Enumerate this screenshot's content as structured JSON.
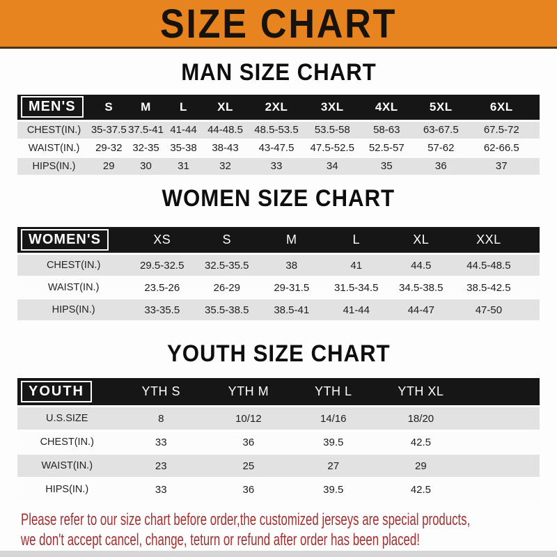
{
  "banner": {
    "title": "SIZE CHART"
  },
  "men": {
    "heading": "MAN SIZE CHART",
    "label": "MEN'S",
    "columns": [
      "S",
      "M",
      "L",
      "XL",
      "2XL",
      "3XL",
      "4XL",
      "5XL",
      "6XL"
    ],
    "rows": [
      {
        "label": "CHEST(IN.)",
        "values": [
          "35-37.5",
          "37.5-41",
          "41-44",
          "44-48.5",
          "48.5-53.5",
          "53.5-58",
          "58-63",
          "63-67.5",
          "67.5-72"
        ]
      },
      {
        "label": "WAIST(IN.)",
        "values": [
          "29-32",
          "32-35",
          "35-38",
          "38-43",
          "43-47.5",
          "47.5-52.5",
          "52.5-57",
          "57-62",
          "62-66.5"
        ]
      },
      {
        "label": "HIPS(IN.)",
        "values": [
          "29",
          "30",
          "31",
          "32",
          "33",
          "34",
          "35",
          "36",
          "37"
        ]
      }
    ]
  },
  "women": {
    "heading": "WOMEN SIZE CHART",
    "label": "WOMEN'S",
    "columns": [
      "XS",
      "S",
      "M",
      "L",
      "XL",
      "XXL"
    ],
    "rows": [
      {
        "label": "CHEST(IN.)",
        "values": [
          "29.5-32.5",
          "32.5-35.5",
          "38",
          "41",
          "44.5",
          "44.5-48.5"
        ]
      },
      {
        "label": "WAIST(IN.)",
        "values": [
          "23.5-26",
          "26-29",
          "29-31.5",
          "31.5-34.5",
          "34.5-38.5",
          "38.5-42.5"
        ]
      },
      {
        "label": "HIPS(IN.)",
        "values": [
          "33-35.5",
          "35.5-38.5",
          "38.5-41",
          "41-44",
          "44-47",
          "47-50"
        ]
      }
    ]
  },
  "youth": {
    "heading": "YOUTH SIZE CHART",
    "label": "YOUTH",
    "columns": [
      "YTH S",
      "YTH M",
      "YTH L",
      "YTH XL"
    ],
    "rows": [
      {
        "label": "U.S.SIZE",
        "values": [
          "8",
          "10/12",
          "14/16",
          "18/20"
        ]
      },
      {
        "label": "CHEST(IN.)",
        "values": [
          "33",
          "36",
          "39.5",
          "42.5"
        ]
      },
      {
        "label": "WAIST(IN.)",
        "values": [
          "23",
          "25",
          "27",
          "29"
        ]
      },
      {
        "label": "HIPS(IN.)",
        "values": [
          "33",
          "36",
          "39.5",
          "42.5"
        ]
      }
    ]
  },
  "footer": {
    "line1": "Please refer to our size chart before order,the customized jerseys are special products,",
    "line2": "we don't accept cancel, change, teturn or refund after order has been placed!"
  },
  "colors": {
    "banner_orange": "#E8841F",
    "bar_black": "#161616",
    "stripe_gray": "#E2E2E2",
    "note_red": "#A23131"
  }
}
